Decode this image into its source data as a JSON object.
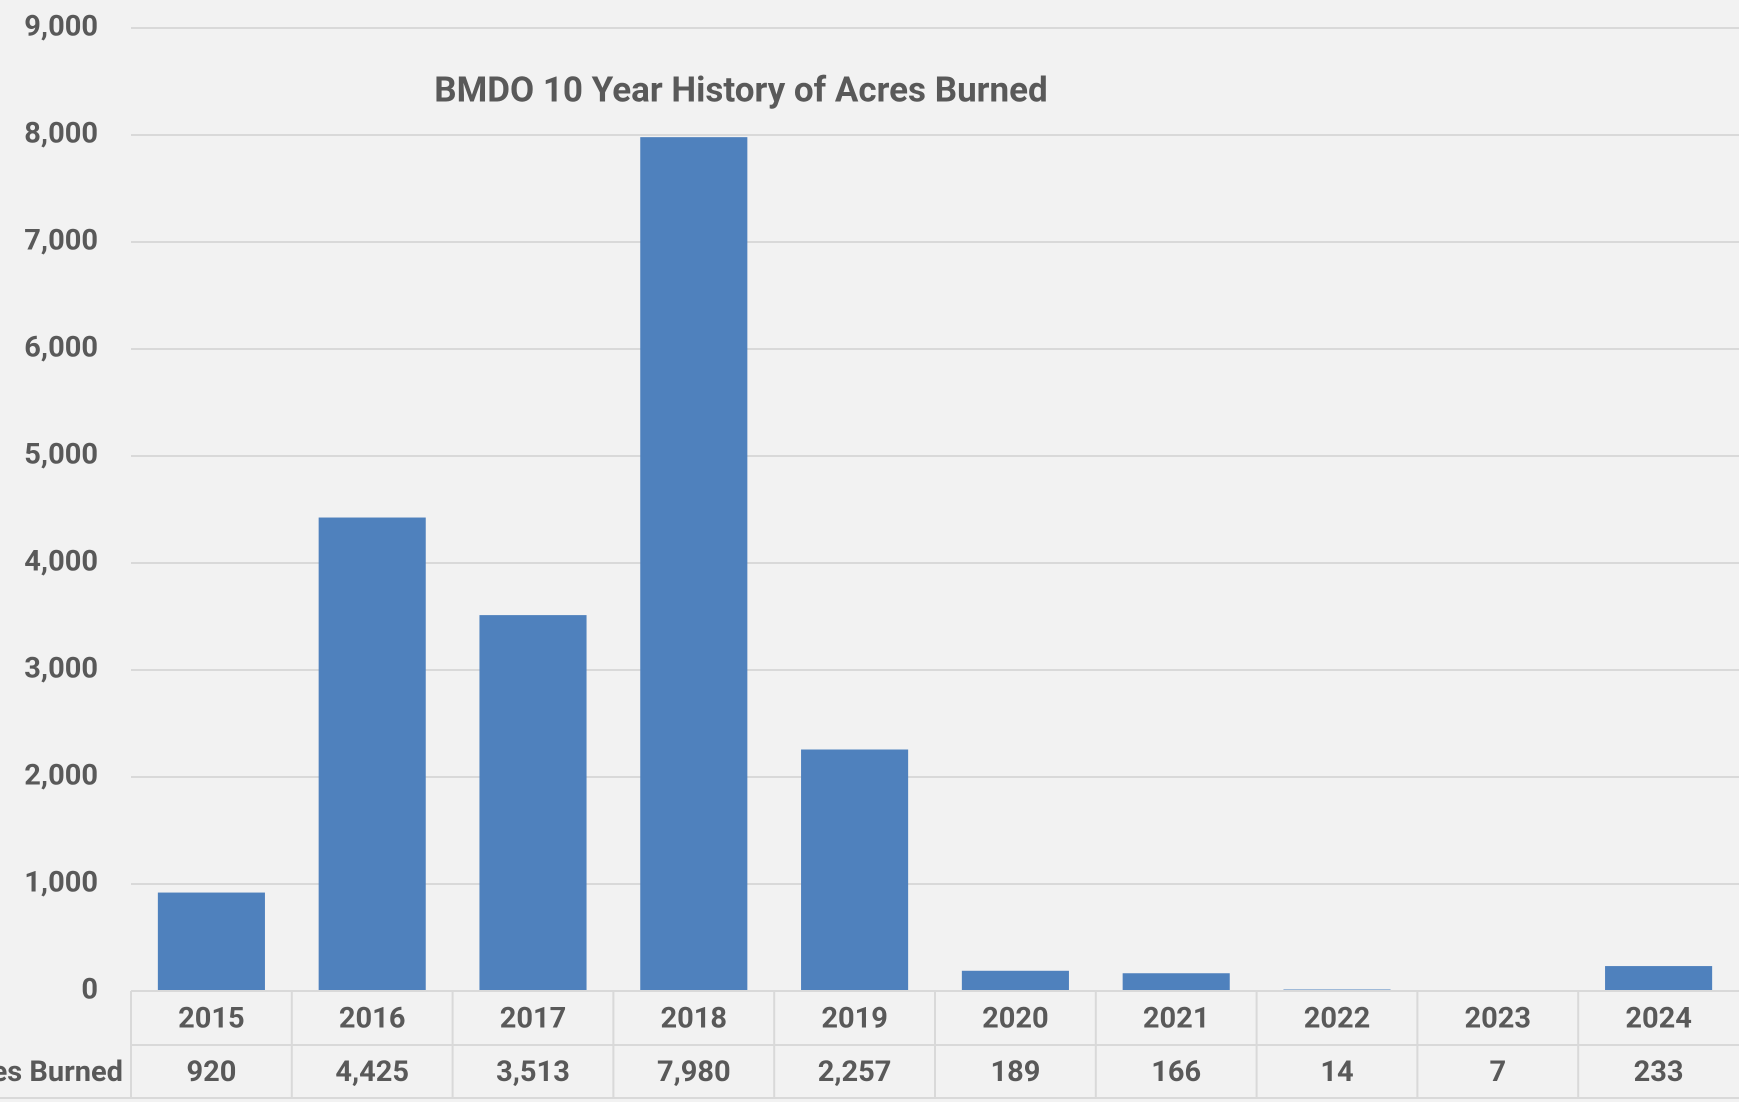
{
  "chart_data": {
    "type": "bar",
    "title": "BMDO 10 Year History of Acres Burned",
    "categories": [
      "2015",
      "2016",
      "2017",
      "2018",
      "2019",
      "2020",
      "2021",
      "2022",
      "2023",
      "2024"
    ],
    "series": [
      {
        "name": "Acres Burned",
        "color": "#4f81bd",
        "values": [
          920,
          4425,
          3513,
          7980,
          2257,
          189,
          166,
          14,
          7,
          233
        ],
        "value_labels": [
          "920",
          "4,425",
          "3,513",
          "7,980",
          "2,257",
          "189",
          "166",
          "14",
          "7",
          "233"
        ]
      }
    ],
    "ylim": [
      0,
      9000
    ],
    "yticks": [
      0,
      {
        "value": 1000,
        "label": "1,000"
      },
      {
        "value": 2000,
        "label": "2,000"
      },
      {
        "value": 3000,
        "label": "3,000"
      },
      {
        "value": 4000,
        "label": "4,000"
      },
      {
        "value": 5000,
        "label": "5,000"
      },
      {
        "value": 6000,
        "label": "6,000"
      },
      {
        "value": 7000,
        "label": "7,000"
      },
      {
        "value": 8000,
        "label": "8,000"
      },
      {
        "value": 9000,
        "label": "9,000"
      }
    ],
    "grid": true,
    "data_table": true
  }
}
